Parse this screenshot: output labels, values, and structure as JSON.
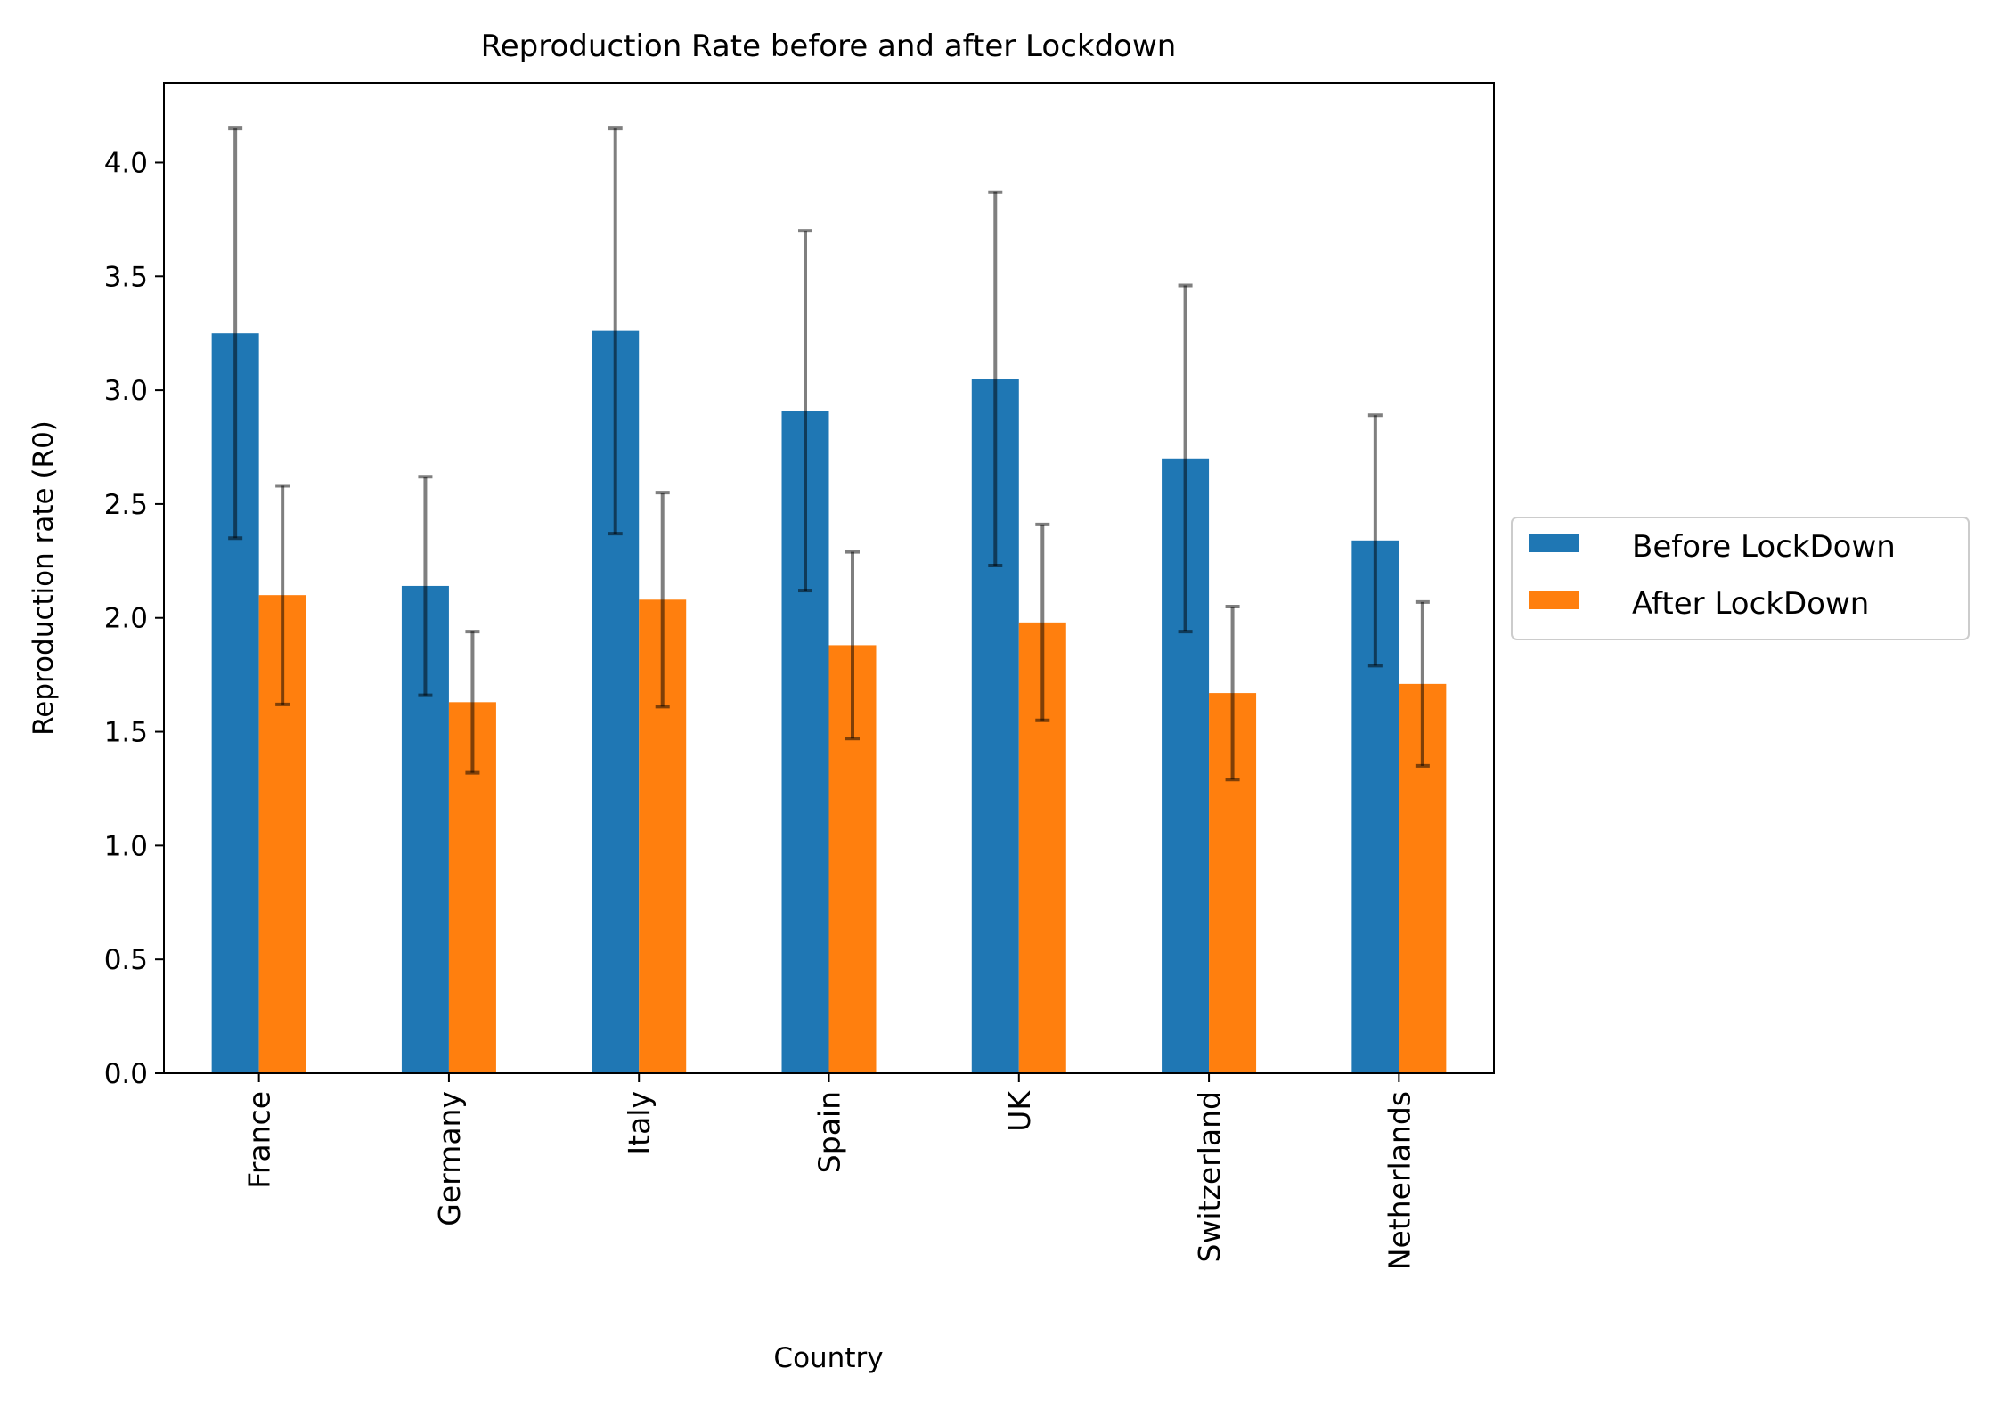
{
  "chart_data": {
    "type": "bar",
    "title": "Reproduction Rate before and after Lockdown",
    "xlabel": "Country",
    "ylabel": "Reproduction rate (R0)",
    "categories": [
      "France",
      "Germany",
      "Italy",
      "Spain",
      "UK",
      "Switzerland",
      "Netherlands"
    ],
    "ylim": [
      0,
      4.35
    ],
    "yticks": [
      "0.0",
      "0.5",
      "1.0",
      "1.5",
      "2.0",
      "2.5",
      "3.0",
      "3.5",
      "4.0"
    ],
    "grid": false,
    "legend_position": "center-right, outside plot",
    "series": [
      {
        "name": "Before LockDown",
        "color": "#1f77b4",
        "values": [
          3.25,
          2.14,
          3.26,
          2.91,
          3.05,
          2.7,
          2.34
        ],
        "error": [
          0.9,
          0.48,
          0.89,
          0.79,
          0.82,
          0.76,
          0.55
        ]
      },
      {
        "name": "After LockDown",
        "color": "#ff7f0e",
        "values": [
          2.1,
          1.63,
          2.08,
          1.88,
          1.98,
          1.67,
          1.71
        ],
        "error": [
          0.48,
          0.31,
          0.47,
          0.41,
          0.43,
          0.38,
          0.36
        ]
      }
    ],
    "error_bar_color": "#000000"
  }
}
